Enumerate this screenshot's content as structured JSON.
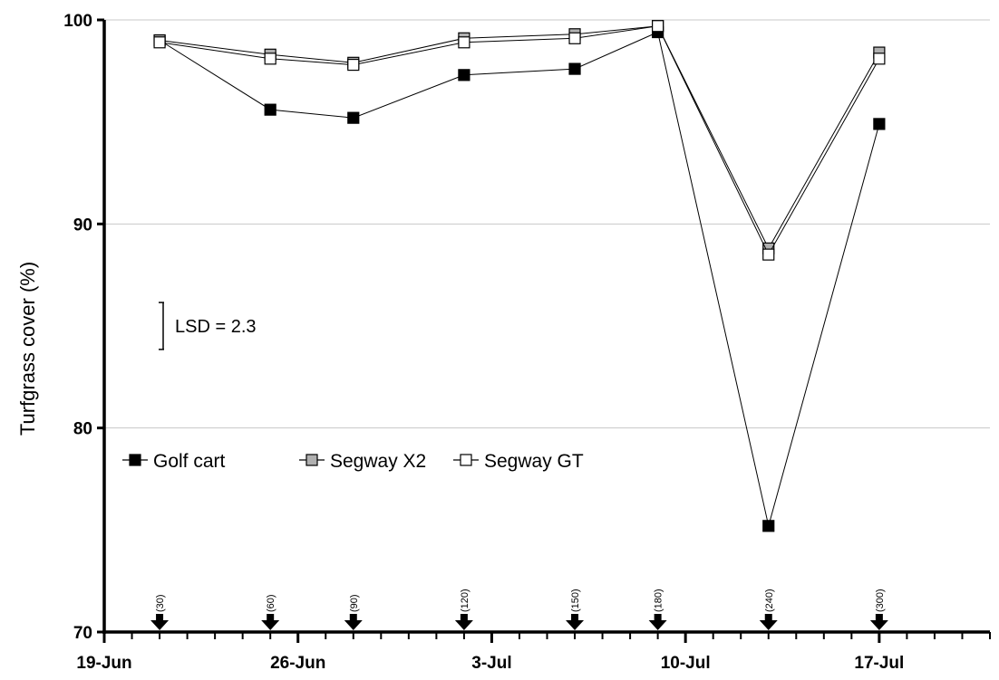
{
  "chart_data": {
    "type": "line",
    "xlabel": "",
    "ylabel": "Turfgrass cover (%)",
    "ylim": [
      70,
      100
    ],
    "yticks": [
      70,
      80,
      90,
      100
    ],
    "xlim": [
      "2012-06-19",
      "2012-07-21"
    ],
    "xticks": [
      {
        "date": "2012-06-19",
        "label": "19-Jun"
      },
      {
        "date": "2012-06-26",
        "label": "26-Jun"
      },
      {
        "date": "2012-07-03",
        "label": "3-Jul"
      },
      {
        "date": "2012-07-10",
        "label": "10-Jul"
      },
      {
        "date": "2012-07-17",
        "label": "17-Jul"
      }
    ],
    "grid": "horizontal",
    "legend_position": "left-middle",
    "x": [
      "2012-06-21",
      "2012-06-25",
      "2012-06-28",
      "2012-07-02",
      "2012-07-06",
      "2012-07-09",
      "2012-07-13",
      "2012-07-17"
    ],
    "series": [
      {
        "name": "Golf cart",
        "marker": "filled-square",
        "fill": "#000000",
        "values": [
          99.0,
          95.6,
          95.2,
          97.3,
          97.6,
          99.4,
          75.2,
          94.9
        ]
      },
      {
        "name": "Segway X2",
        "marker": "gray-square",
        "fill": "#b0b0b0",
        "values": [
          99.0,
          98.3,
          97.9,
          99.1,
          99.3,
          99.7,
          88.8,
          98.4
        ]
      },
      {
        "name": "Segway GT",
        "marker": "open-square",
        "fill": "#ffffff",
        "values": [
          98.9,
          98.1,
          97.8,
          98.9,
          99.1,
          99.7,
          88.5,
          98.1
        ]
      }
    ],
    "traffic_events": [
      {
        "date": "2012-06-21",
        "label": "(30)"
      },
      {
        "date": "2012-06-25",
        "label": "(60)"
      },
      {
        "date": "2012-06-28",
        "label": "(90)"
      },
      {
        "date": "2012-07-02",
        "label": "(120)"
      },
      {
        "date": "2012-07-06",
        "label": "(150)"
      },
      {
        "date": "2012-07-09",
        "label": "(180)"
      },
      {
        "date": "2012-07-13",
        "label": "(240)"
      },
      {
        "date": "2012-07-17",
        "label": "(300)"
      }
    ],
    "lsd": {
      "label": "LSD = 2.3",
      "value": 2.3,
      "center": 85.0
    }
  }
}
